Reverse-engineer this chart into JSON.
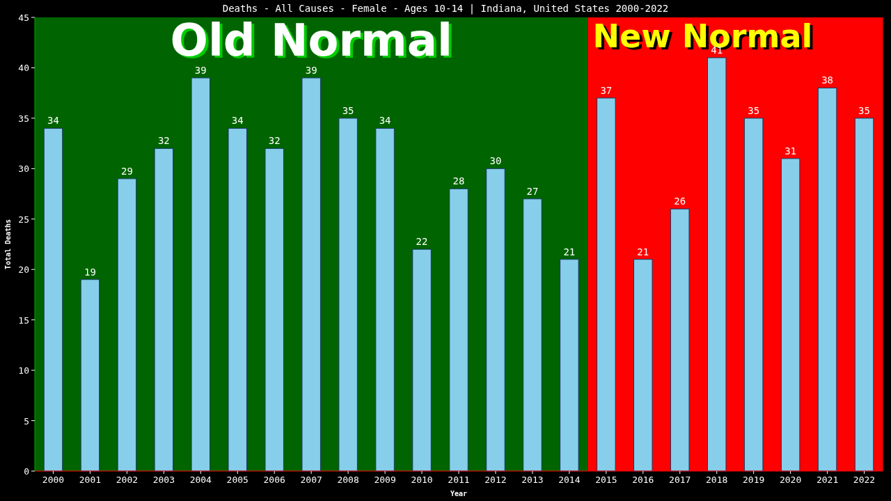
{
  "chart_data": {
    "type": "bar",
    "title": "Deaths - All Causes - Female - Ages 10-14 | Indiana, United States 2000-2022",
    "xlabel": "Year",
    "ylabel": "Total Deaths",
    "categories": [
      "2000",
      "2001",
      "2002",
      "2003",
      "2004",
      "2005",
      "2006",
      "2007",
      "2008",
      "2009",
      "2010",
      "2011",
      "2012",
      "2013",
      "2014",
      "2015",
      "2016",
      "2017",
      "2018",
      "2019",
      "2020",
      "2021",
      "2022"
    ],
    "values": [
      34,
      19,
      29,
      32,
      39,
      34,
      32,
      39,
      35,
      34,
      22,
      28,
      30,
      27,
      21,
      37,
      21,
      26,
      41,
      35,
      31,
      38,
      35
    ],
    "color": "#87ceeb",
    "ylim": [
      0,
      45
    ],
    "yticks": [
      0,
      5,
      10,
      15,
      20,
      25,
      30,
      35,
      40,
      45
    ],
    "grid": false,
    "data_labels": true,
    "bands": [
      {
        "axis": "x",
        "from": "2000",
        "to": "2014",
        "label": "Old Normal",
        "color": "#006400"
      },
      {
        "axis": "x",
        "from": "2015",
        "to": "2022",
        "label": "New Normal",
        "color": "#ff0000"
      }
    ]
  }
}
